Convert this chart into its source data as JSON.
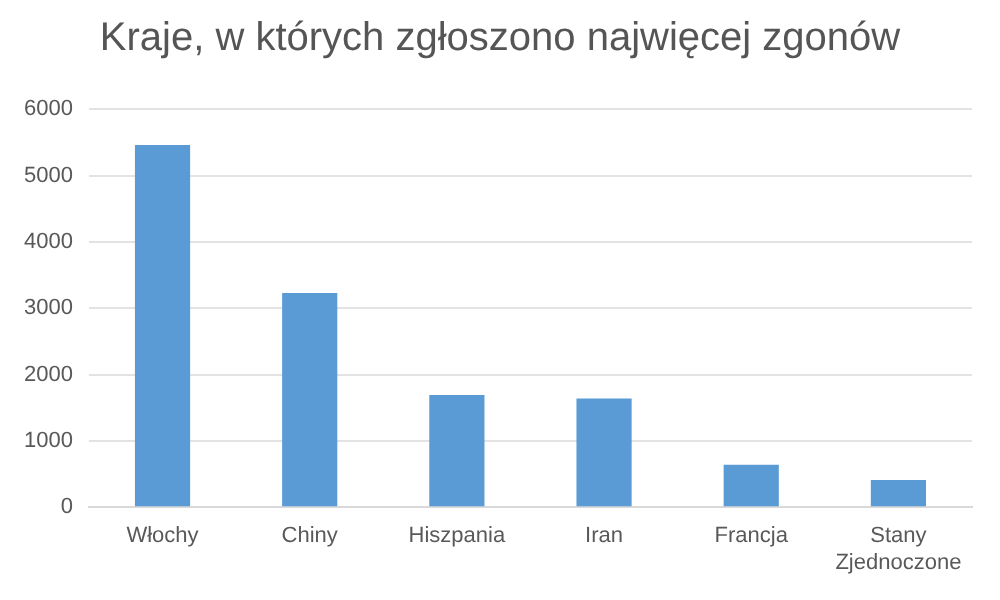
{
  "chart_data": {
    "type": "bar",
    "title": "Kraje, w których zgłoszono najwięcej zgonów",
    "categories": [
      "Włochy",
      "Chiny",
      "Hiszpania",
      "Iran",
      "Francja",
      "Stany Zjednoczone"
    ],
    "values": [
      5460,
      3230,
      1690,
      1640,
      640,
      410
    ],
    "color": "#5b9bd5",
    "ylim": [
      0,
      6000
    ],
    "yticks": [
      0,
      1000,
      2000,
      3000,
      4000,
      5000,
      6000
    ],
    "grid": "y"
  }
}
